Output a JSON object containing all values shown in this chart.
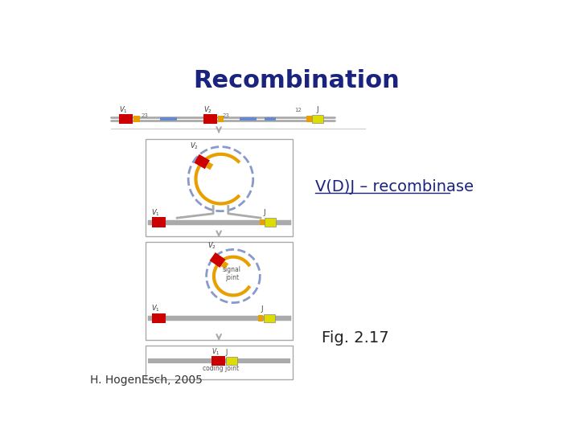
{
  "title": "Recombination",
  "title_color": "#1a237e",
  "title_fontsize": 22,
  "title_bold": true,
  "label_vdj": "V(D)J – recombinase",
  "label_vdj_color": "#1a237e",
  "label_vdj_fontsize": 14,
  "label_fig": "Fig. 2.17",
  "label_fig_fontsize": 14,
  "label_fig_color": "#222222",
  "label_author": "H. HogenEsch, 2005",
  "label_author_fontsize": 10,
  "background_color": "#ffffff",
  "red_color": "#cc0000",
  "orange_color": "#e8a000",
  "yellow_color": "#dddd00",
  "gray_color": "#aaaaaa",
  "blue_color": "#6688cc",
  "dark_gray": "#888888",
  "box_edge_color": "#aaaaaa",
  "arrow_color": "#aaaaaa"
}
